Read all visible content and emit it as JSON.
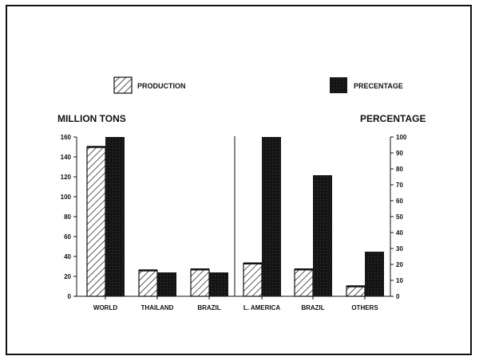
{
  "chart_data": {
    "type": "bar",
    "title": "",
    "categories": [
      "WORLD",
      "THAILAND",
      "BRAZIL",
      "L. AMERICA",
      "BRAZIL",
      "OTHERS"
    ],
    "series": [
      {
        "name": "PRODUCTION",
        "axis": "left",
        "pattern": "hatched",
        "values": [
          150,
          26,
          27,
          33,
          27,
          10
        ]
      },
      {
        "name": "PRECENTAGE",
        "axis": "right",
        "pattern": "solid-dark",
        "values": [
          100,
          15,
          15,
          100,
          76,
          28
        ]
      }
    ],
    "ylabel_left": "MILLION TONS",
    "ylabel_right": "PERCENTAGE",
    "ylim_left": [
      0,
      160
    ],
    "yticks_left": [
      0,
      20,
      40,
      60,
      80,
      100,
      120,
      140,
      160
    ],
    "ylim_right": [
      0,
      100
    ],
    "yticks_right": [
      0,
      10,
      20,
      30,
      40,
      50,
      60,
      70,
      80,
      90,
      100
    ],
    "grid": false,
    "legend_position": "top",
    "divider_after_category_index": 2
  },
  "legend": {
    "production": "PRODUCTION",
    "percentage": "PRECENTAGE"
  },
  "axes": {
    "left_title": "MILLION TONS",
    "right_title": "PERCENTAGE"
  },
  "colors": {
    "ink": "#111111",
    "dark_fill": "#1a1a1a",
    "background": "#ffffff"
  }
}
